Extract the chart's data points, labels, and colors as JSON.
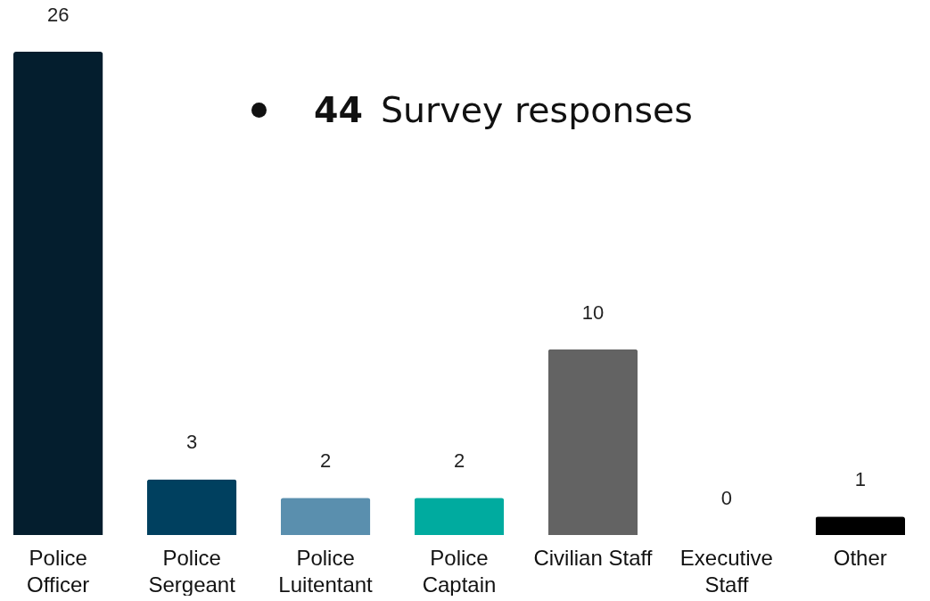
{
  "chart_data": {
    "type": "bar",
    "categories": [
      "Police\nOfficer",
      "Police\nSergeant",
      "Police\nLuitentant",
      "Police\nCaptain",
      "Civilian Staff",
      "Executive\nStaff",
      "Other"
    ],
    "values": [
      26,
      3,
      2,
      2,
      10,
      0,
      1
    ],
    "colors": [
      "#041e2e",
      "#00405f",
      "#5a8fae",
      "#00ab9f",
      "#636363",
      null,
      "#000000"
    ],
    "data_labels": true,
    "tick_labels": "x",
    "annotations": [
      "44 Survey responses"
    ]
  }
}
